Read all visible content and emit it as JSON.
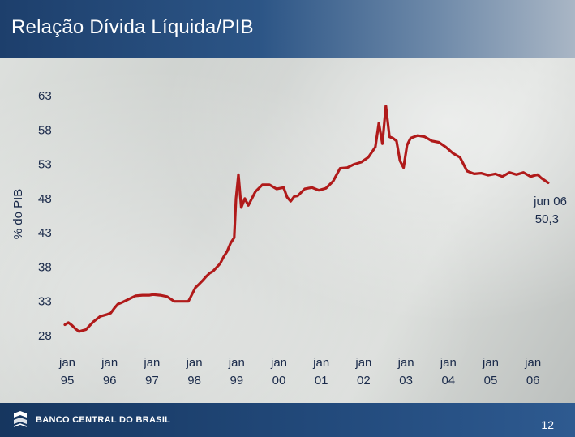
{
  "header": {
    "title": "Relação Dívida Líquida/PIB"
  },
  "footer": {
    "bank_name": "BANCO CENTRAL DO BRASIL",
    "page_number": "12"
  },
  "colors": {
    "series": "#b01a1a",
    "header": "#2c5586",
    "footer": "#1c4271"
  },
  "chart_data": {
    "type": "line",
    "title": "Relação Dívida Líquida/PIB",
    "xlabel": "",
    "ylabel": "% do PIB",
    "ylim": [
      28,
      63
    ],
    "xlim": [
      0,
      138
    ],
    "y_ticks": [
      "63",
      "58",
      "53",
      "48",
      "43",
      "38",
      "33",
      "28"
    ],
    "y_tick_values": [
      63,
      58,
      53,
      48,
      43,
      38,
      33,
      28
    ],
    "x_ticks": [
      {
        "month": "jan",
        "year": "95",
        "x": 0
      },
      {
        "month": "jan",
        "year": "96",
        "x": 12
      },
      {
        "month": "jan",
        "year": "97",
        "x": 24
      },
      {
        "month": "jan",
        "year": "98",
        "x": 36
      },
      {
        "month": "jan",
        "year": "99",
        "x": 48
      },
      {
        "month": "jan",
        "year": "00",
        "x": 60
      },
      {
        "month": "jan",
        "year": "01",
        "x": 72
      },
      {
        "month": "jan",
        "year": "02",
        "x": 84
      },
      {
        "month": "jan",
        "year": "03",
        "x": 96
      },
      {
        "month": "jan",
        "year": "04",
        "x": 108
      },
      {
        "month": "jan",
        "year": "05",
        "x": 120
      },
      {
        "month": "jan",
        "year": "06",
        "x": 132
      }
    ],
    "annotation": {
      "line1": "jun 06",
      "line2": "50,3"
    },
    "series": [
      {
        "name": "Dívida líquida / PIB",
        "x": [
          0,
          1,
          2,
          3,
          4,
          6,
          8,
          10,
          12,
          13,
          14,
          15,
          16,
          18,
          20,
          22,
          24,
          25,
          27,
          29,
          31,
          33,
          34,
          35,
          36,
          37,
          38,
          39,
          40,
          41,
          42,
          44,
          45,
          46,
          47,
          48,
          48.5,
          49.2,
          50,
          51,
          52,
          54,
          56,
          58,
          60,
          62,
          63,
          64,
          65,
          66,
          68,
          70,
          72,
          74,
          76,
          78,
          80,
          82,
          84,
          86,
          88,
          89,
          90,
          91,
          92,
          93,
          94,
          95,
          96,
          97,
          98,
          100,
          101,
          102,
          104,
          106,
          108,
          110,
          112,
          114,
          116,
          118,
          120,
          122,
          124,
          126,
          128,
          130,
          132,
          134,
          135,
          137
        ],
        "values": [
          29.6,
          29.9,
          29.5,
          29.0,
          28.6,
          28.9,
          30.0,
          30.8,
          31.1,
          31.3,
          32.0,
          32.6,
          32.8,
          33.3,
          33.8,
          33.9,
          33.9,
          34.0,
          33.9,
          33.7,
          33.0,
          33.0,
          33.0,
          33.0,
          34.0,
          35.0,
          35.5,
          36.0,
          36.6,
          37.1,
          37.4,
          38.5,
          39.5,
          40.3,
          41.5,
          42.3,
          48.0,
          51.5,
          46.7,
          48.0,
          47.0,
          49.0,
          50.0,
          50.0,
          49.4,
          49.6,
          48.2,
          47.6,
          48.3,
          48.4,
          49.4,
          49.6,
          49.2,
          49.5,
          50.5,
          52.4,
          52.5,
          53.0,
          53.3,
          54.0,
          55.5,
          59.0,
          56.0,
          61.5,
          57.0,
          56.8,
          56.4,
          53.5,
          52.5,
          55.8,
          56.8,
          57.2,
          57.1,
          57.0,
          56.4,
          56.2,
          55.5,
          54.6,
          54.0,
          52.0,
          51.6,
          51.7,
          51.4,
          51.6,
          51.2,
          51.8,
          51.5,
          51.8,
          51.2,
          51.5,
          51.0,
          50.3
        ]
      }
    ]
  }
}
